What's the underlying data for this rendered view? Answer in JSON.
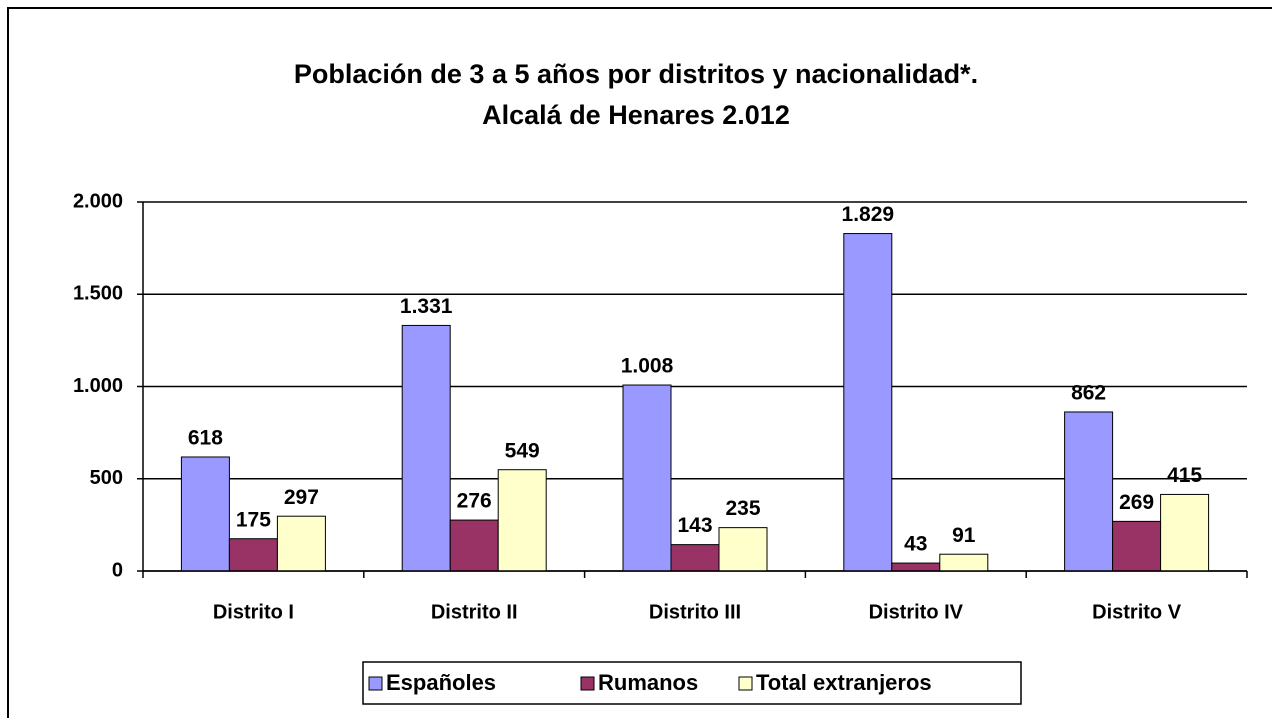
{
  "chart_data": {
    "type": "bar",
    "title": "Población de 3 a 5 años por distritos y nacionalidad*.",
    "subtitle": "Alcalá de Henares 2.012",
    "categories": [
      "Distrito I",
      "Distrito II",
      "Distrito III",
      "Distrito IV",
      "Distrito V"
    ],
    "series": [
      {
        "name": "Españoles",
        "color": "#9999ff",
        "values": [
          618,
          1331,
          1008,
          1829,
          862
        ],
        "value_labels": [
          "618",
          "1.331",
          "1.008",
          "1.829",
          "862"
        ]
      },
      {
        "name": "Rumanos",
        "color": "#993366",
        "values": [
          175,
          276,
          143,
          43,
          269
        ]
      },
      {
        "name": "Total extranjeros",
        "color": "#ffffcc",
        "values": [
          297,
          549,
          235,
          91,
          415
        ]
      }
    ],
    "ylim": [
      0,
      2000
    ],
    "yticks": [
      0,
      500,
      {
        "value": 1000,
        "label": "1.000"
      },
      {
        "value": 1500,
        "label": "1.500"
      },
      {
        "value": 2000,
        "label": "2.000"
      }
    ],
    "grid": true,
    "legend": "bottom"
  }
}
